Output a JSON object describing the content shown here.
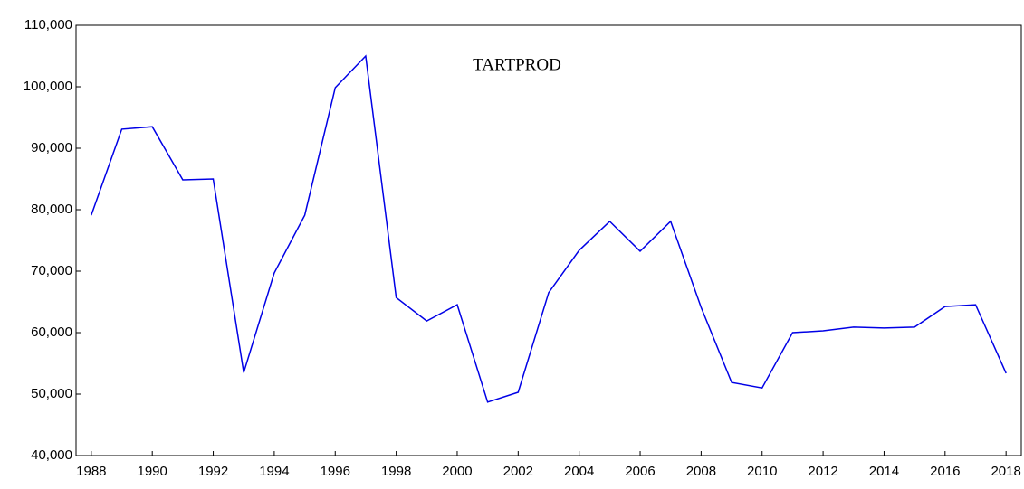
{
  "chart_data": {
    "type": "line",
    "x": [
      1988,
      1989,
      1990,
      1991,
      1992,
      1993,
      1994,
      1995,
      1996,
      1997,
      1998,
      1999,
      2000,
      2001,
      2002,
      2003,
      2004,
      2005,
      2006,
      2007,
      2008,
      2009,
      2010,
      2011,
      2012,
      2013,
      2014,
      2015,
      2016,
      2017,
      2018
    ],
    "series": [
      {
        "name": "TARTPROD",
        "color": "#0000e6",
        "values": [
          79100,
          93100,
          93500,
          84850,
          85000,
          53500,
          69700,
          79100,
          99850,
          105000,
          65700,
          61900,
          64550,
          48700,
          50300,
          66500,
          73400,
          78100,
          73250,
          78100,
          64100,
          51900,
          51000,
          60000,
          60300,
          60900,
          60750,
          60900,
          64250,
          64550,
          53400
        ]
      }
    ],
    "xlim": [
      1987.5,
      2018.5
    ],
    "xticks": [
      1988,
      1990,
      1992,
      1994,
      1996,
      1998,
      2000,
      2002,
      2004,
      2006,
      2008,
      2010,
      2012,
      2014,
      2016,
      2018
    ],
    "ylim": [
      40000,
      110000
    ],
    "yticks": [
      {
        "value": 40000,
        "label": "40,000"
      },
      {
        "value": 50000,
        "label": "50,000"
      },
      {
        "value": 60000,
        "label": "60,000"
      },
      {
        "value": 70000,
        "label": "70,000"
      },
      {
        "value": 80000,
        "label": "80,000"
      },
      {
        "value": 90000,
        "label": "90,000"
      },
      {
        "value": 100000,
        "label": "100,000"
      },
      {
        "value": 110000,
        "label": "110,000"
      }
    ],
    "grid": false
  }
}
